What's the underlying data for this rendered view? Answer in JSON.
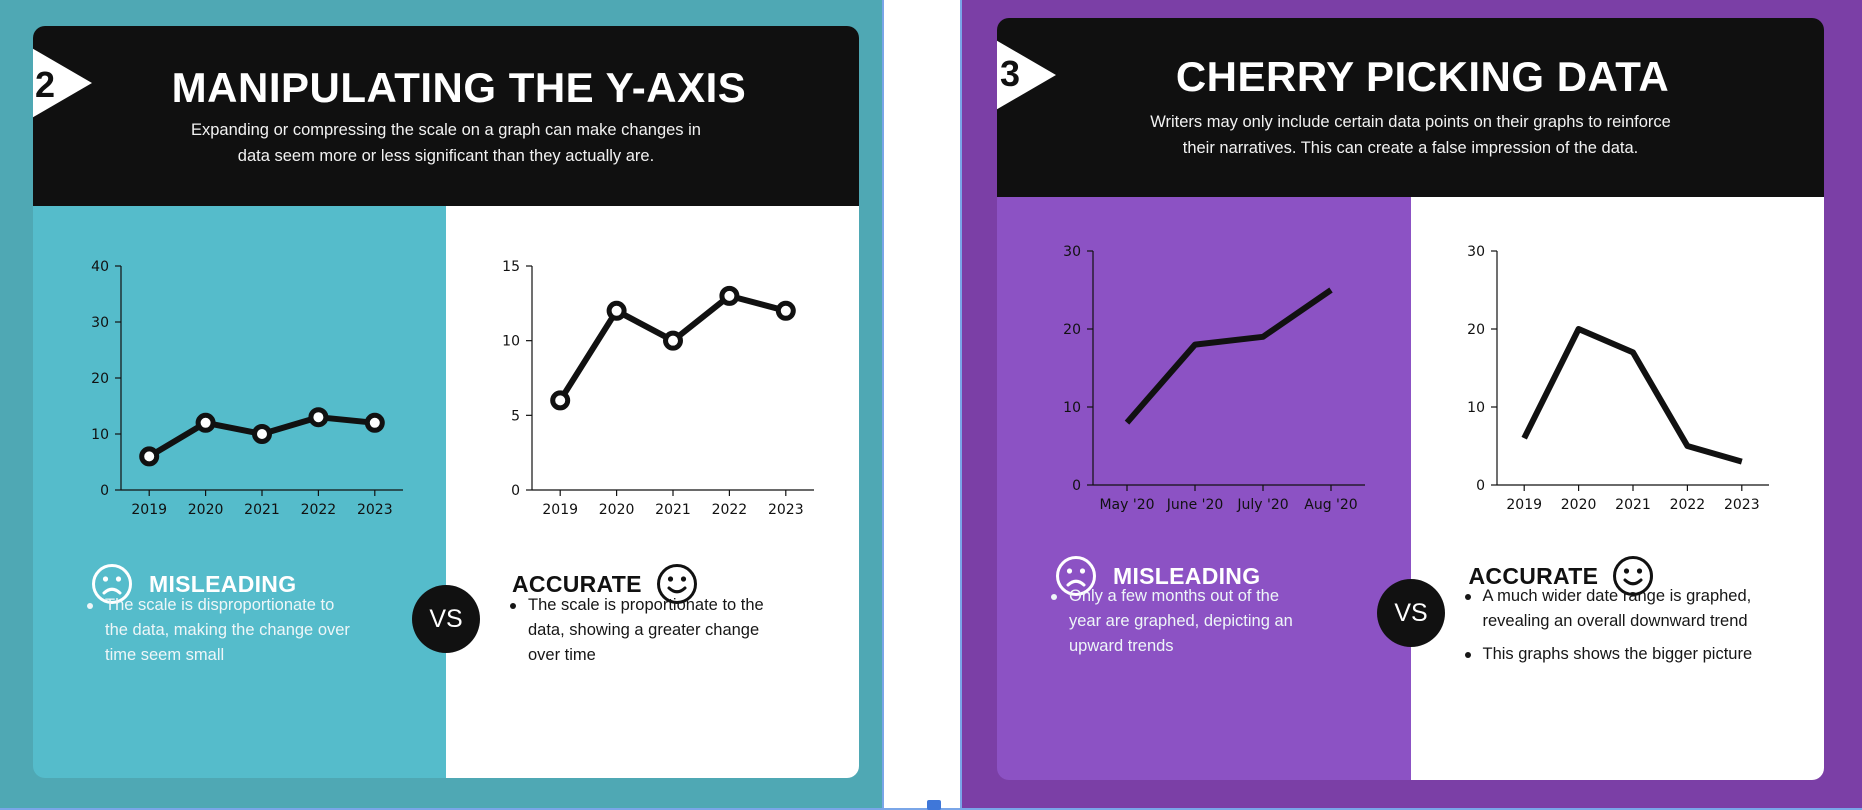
{
  "slides": [
    {
      "number": "2",
      "title": "MANIPULATING THE Y-AXIS",
      "subtitle_line1": "Expanding or compressing the scale on a graph can make changes in",
      "subtitle_line2": "data seem more or less significant than they actually are.",
      "vs_label": "VS",
      "misleading_label": "MISLEADING",
      "accurate_label": "ACCURATE",
      "misleading_points": [
        "The scale is disproportionate to the data, making the change over time seem small"
      ],
      "accurate_points": [
        "The scale is proportionate to the data, showing a greater change over time"
      ],
      "colors": {
        "background": "#4fa8b4",
        "left_half": "#55bccb",
        "right_half": "#ffffff",
        "header": "#101010"
      }
    },
    {
      "number": "3",
      "title": "CHERRY PICKING DATA",
      "subtitle_line1": "Writers may only include certain data points on their graphs to reinforce",
      "subtitle_line2": "their narratives. This can create a false impression of the data.",
      "vs_label": "VS",
      "misleading_label": "MISLEADING",
      "accurate_label": "ACCURATE",
      "misleading_points": [
        "Only a few months out of the year are graphed, depicting an upward trends"
      ],
      "accurate_points": [
        "A much wider date range is graphed, revealing an overall downward trend",
        "This graphs shows the bigger picture"
      ],
      "colors": {
        "background": "#7b3fa6",
        "left_half": "#8c52c4",
        "right_half": "#ffffff",
        "header": "#101010"
      }
    }
  ],
  "icons": {
    "misleading": "sad-face-icon",
    "accurate": "smiley-face-icon"
  },
  "chart_data": [
    {
      "id": "s2-misleading",
      "type": "line",
      "markers": true,
      "categories": [
        "2019",
        "2020",
        "2021",
        "2022",
        "2023"
      ],
      "values": [
        6,
        12,
        10,
        13,
        12
      ],
      "ylim": [
        0,
        40
      ],
      "yticks": [
        0,
        10,
        20,
        30,
        40
      ],
      "xlabel": "",
      "ylabel": ""
    },
    {
      "id": "s2-accurate",
      "type": "line",
      "markers": true,
      "categories": [
        "2019",
        "2020",
        "2021",
        "2022",
        "2023"
      ],
      "values": [
        6,
        12,
        10,
        13,
        12
      ],
      "ylim": [
        0,
        15
      ],
      "yticks": [
        0,
        5,
        10,
        15
      ],
      "xlabel": "",
      "ylabel": ""
    },
    {
      "id": "s3-misleading",
      "type": "line",
      "markers": false,
      "categories": [
        "May '20",
        "June '20",
        "July '20",
        "Aug '20"
      ],
      "values": [
        8,
        18,
        19,
        25
      ],
      "ylim": [
        0,
        30
      ],
      "yticks": [
        0,
        10,
        20,
        30
      ],
      "xlabel": "",
      "ylabel": ""
    },
    {
      "id": "s3-accurate",
      "type": "line",
      "markers": false,
      "categories": [
        "2019",
        "2020",
        "2021",
        "2022",
        "2023"
      ],
      "values": [
        6,
        20,
        17,
        5,
        3
      ],
      "ylim": [
        0,
        30
      ],
      "yticks": [
        0,
        10,
        20,
        30
      ],
      "xlabel": "",
      "ylabel": ""
    }
  ]
}
